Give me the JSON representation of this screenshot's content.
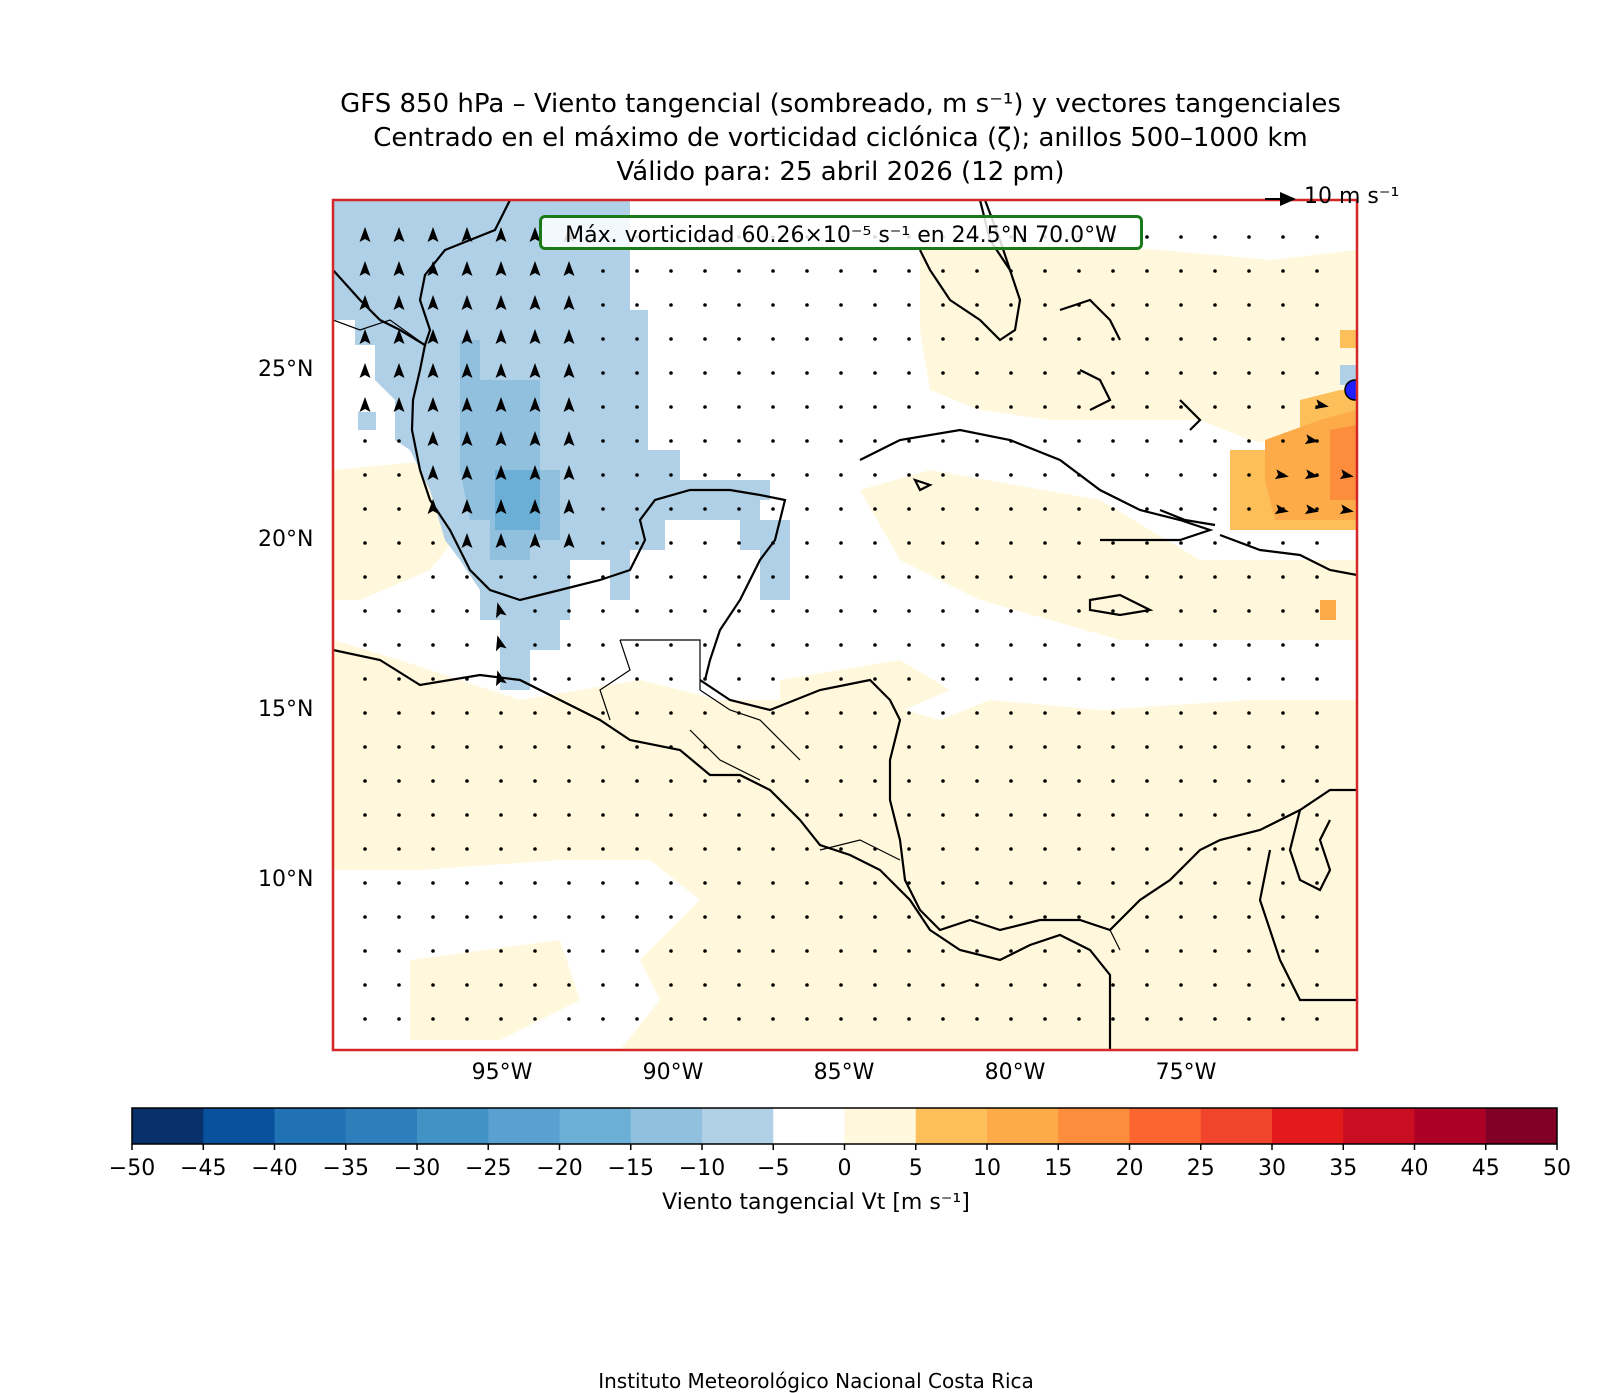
{
  "title": {
    "line1": "GFS 850 hPa – Viento tangencial (sombreado, m s⁻¹) y vectores tangenciales",
    "line2": "Centrado en el máximo de vorticidad ciclónica (ζ); anillos 500–1000 km",
    "line3": "Válido para: 25 abril 2026 (12 pm)"
  },
  "annotation": {
    "max_vorticity": "Máx. vorticidad 60.26×10⁻⁵ s⁻¹ en 24.5°N 70.0°W",
    "reference_vector": "10 m s⁻¹"
  },
  "axes": {
    "lat_labels": [
      "25°N",
      "20°N",
      "15°N",
      "10°N"
    ],
    "lon_labels": [
      "95°W",
      "90°W",
      "85°W",
      "80°W",
      "75°W"
    ]
  },
  "colorbar": {
    "label": "Viento tangencial Vt [m s⁻¹]",
    "ticks": [
      "−50",
      "−45",
      "−40",
      "−35",
      "−30",
      "−25",
      "−20",
      "−15",
      "−10",
      "−5",
      "0",
      "5",
      "10",
      "15",
      "20",
      "25",
      "30",
      "35",
      "40",
      "45",
      "50"
    ],
    "colors": [
      "#08306b",
      "#08519c",
      "#2171b5",
      "#2e7ebc",
      "#4292c6",
      "#5aa0d0",
      "#6baed6",
      "#90c0de",
      "#afd0e6",
      "#ffffff",
      "#fff8dc",
      "#fdbf5a",
      "#fdaa48",
      "#fc8d3c",
      "#fc6430",
      "#f0452a",
      "#e31a1c",
      "#c90d22",
      "#ad0026",
      "#800026"
    ]
  },
  "credit": "Instituto Meteorológico Nacional Costa Rica",
  "colors": {
    "frame": "#d62728",
    "box_border": "#1a7a1a",
    "center_marker": "#1f1fff"
  }
}
